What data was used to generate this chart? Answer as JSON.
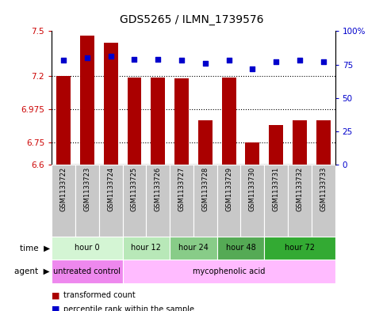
{
  "title": "GDS5265 / ILMN_1739576",
  "samples": [
    "GSM1133722",
    "GSM1133723",
    "GSM1133724",
    "GSM1133725",
    "GSM1133726",
    "GSM1133727",
    "GSM1133728",
    "GSM1133729",
    "GSM1133730",
    "GSM1133731",
    "GSM1133732",
    "GSM1133733"
  ],
  "bar_values": [
    7.2,
    7.47,
    7.42,
    7.19,
    7.19,
    7.18,
    6.9,
    7.19,
    6.75,
    6.87,
    6.9,
    6.9
  ],
  "bar_base": 6.6,
  "dot_values": [
    78,
    80,
    81,
    79,
    79,
    78,
    76,
    78,
    72,
    77,
    78,
    77
  ],
  "ylim_left": [
    6.6,
    7.5
  ],
  "ylim_right": [
    0,
    100
  ],
  "yticks_left": [
    6.6,
    6.75,
    6.975,
    7.2,
    7.5
  ],
  "ytick_labels_left": [
    "6.6",
    "6.75",
    "6.975",
    "7.2",
    "7.5"
  ],
  "yticks_right": [
    0,
    25,
    50,
    75,
    100
  ],
  "ytick_labels_right": [
    "0",
    "25",
    "50",
    "75",
    "100%"
  ],
  "hlines": [
    7.2,
    6.975,
    6.75
  ],
  "bar_color": "#aa0000",
  "dot_color": "#0000cc",
  "time_groups": [
    {
      "label": "hour 0",
      "start": 0,
      "end": 3,
      "color": "#d4f5d4"
    },
    {
      "label": "hour 12",
      "start": 3,
      "end": 5,
      "color": "#b8e8b8"
    },
    {
      "label": "hour 24",
      "start": 5,
      "end": 7,
      "color": "#88cc88"
    },
    {
      "label": "hour 48",
      "start": 7,
      "end": 9,
      "color": "#55aa55"
    },
    {
      "label": "hour 72",
      "start": 9,
      "end": 12,
      "color": "#33aa33"
    }
  ],
  "agent_groups": [
    {
      "label": "untreated control",
      "start": 0,
      "end": 3,
      "color": "#ee88ee"
    },
    {
      "label": "mycophenolic acid",
      "start": 3,
      "end": 12,
      "color": "#ffbbff"
    }
  ],
  "legend_bar_label": "transformed count",
  "legend_dot_label": "percentile rank within the sample",
  "time_label": "time",
  "agent_label": "agent",
  "sample_bg_color": "#c8c8c8",
  "tick_color_left": "#cc0000",
  "tick_color_right": "#0000cc",
  "border_color": "#888888"
}
